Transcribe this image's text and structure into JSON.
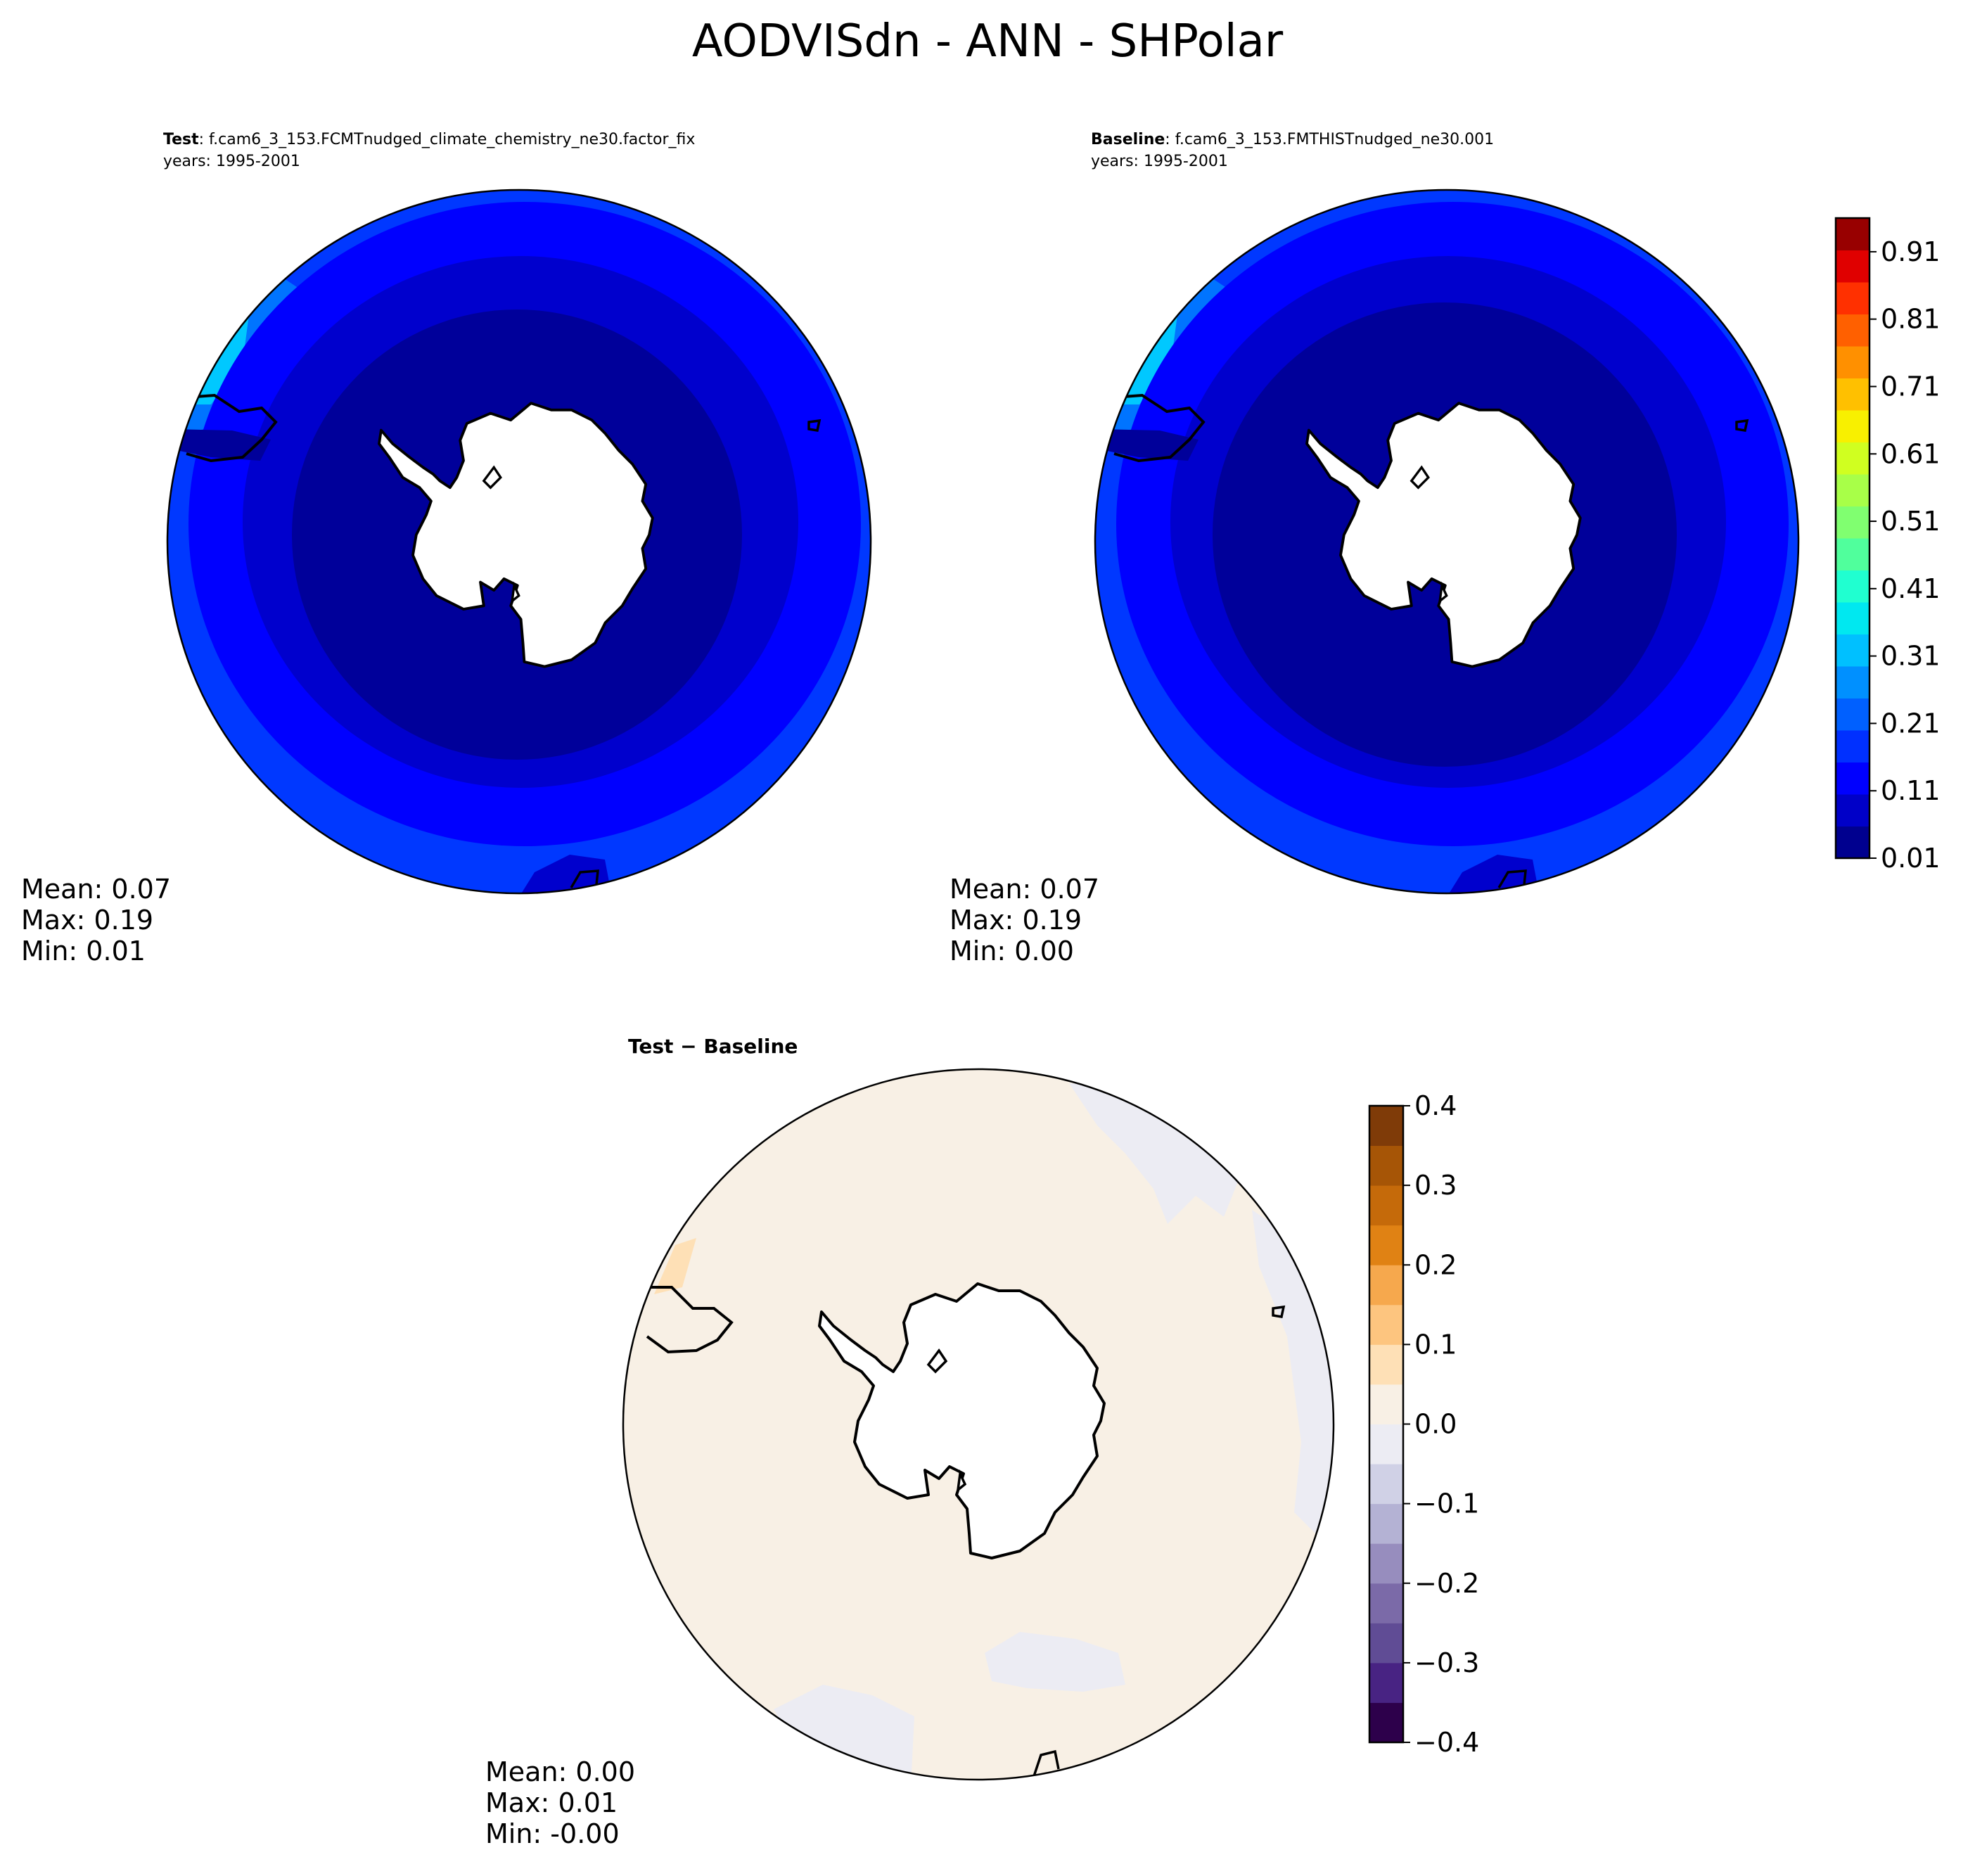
{
  "figure": {
    "title": "AODVISdn - ANN - SHPolar"
  },
  "chart_data": [
    {
      "type": "heatmap",
      "panel": "test",
      "header_bold": "Test",
      "header_text": ": f.cam6_3_153.FCMTnudged_climate_chemistry_ne30.factor_fix",
      "subheader": "years: 1995-2001",
      "projection": "south polar stereographic",
      "stats": {
        "mean": "Mean:  0.07",
        "max": "Max:  0.19",
        "min": "Min:  0.01"
      },
      "field_rings": [
        {
          "level": "0.01-0.04",
          "color": "#00009a"
        },
        {
          "level": "0.04-0.07",
          "color": "#0000cd"
        },
        {
          "level": "0.07-0.10",
          "color": "#0000ff"
        },
        {
          "level": "0.10-0.14",
          "color": "#0038ff"
        },
        {
          "level": "0.14-0.19",
          "color": "#0060ff"
        }
      ]
    },
    {
      "type": "heatmap",
      "panel": "baseline",
      "header_bold": "Baseline",
      "header_text": ": f.cam6_3_153.FMTHISTnudged_ne30.001",
      "subheader": "years: 1995-2001",
      "projection": "south polar stereographic",
      "stats": {
        "mean": "Mean:  0.07",
        "max": "Max:  0.19",
        "min": "Min:  0.00"
      }
    },
    {
      "type": "heatmap",
      "panel": "difference",
      "header_bold": "Test − Baseline",
      "projection": "south polar stereographic",
      "stats": {
        "mean": "Mean:  0.00",
        "max": "Max:  0.01",
        "min": "Min: -0.00"
      }
    }
  ],
  "colorbars": {
    "main": {
      "ticks": [
        "0.01",
        "0.11",
        "0.21",
        "0.31",
        "0.41",
        "0.51",
        "0.61",
        "0.71",
        "0.81",
        "0.91"
      ],
      "range": [
        0.01,
        0.96
      ],
      "colors": [
        "#00008f",
        "#0000c8",
        "#0000ff",
        "#0030ff",
        "#0060ff",
        "#0090ff",
        "#00c0ff",
        "#00e8f0",
        "#20ffd0",
        "#50ff9c",
        "#80ff70",
        "#a8ff48",
        "#d0ff20",
        "#f8f000",
        "#ffc000",
        "#ff9000",
        "#ff6000",
        "#ff3000",
        "#e00000",
        "#980000"
      ]
    },
    "diff": {
      "ticks": [
        "−0.4",
        "−0.3",
        "−0.2",
        "−0.1",
        "0.0",
        "0.1",
        "0.2",
        "0.3",
        "0.4"
      ],
      "range": [
        -0.4,
        0.4
      ],
      "colors": [
        "#2d004b",
        "#482383",
        "#604c95",
        "#7b6aa8",
        "#978dbe",
        "#b4b2d4",
        "#d0d1e6",
        "#ececf3",
        "#f8f0e5",
        "#fee0b6",
        "#fdc57f",
        "#f6a84d",
        "#e08214",
        "#c56a0a",
        "#a65506",
        "#7f3b08"
      ]
    }
  }
}
